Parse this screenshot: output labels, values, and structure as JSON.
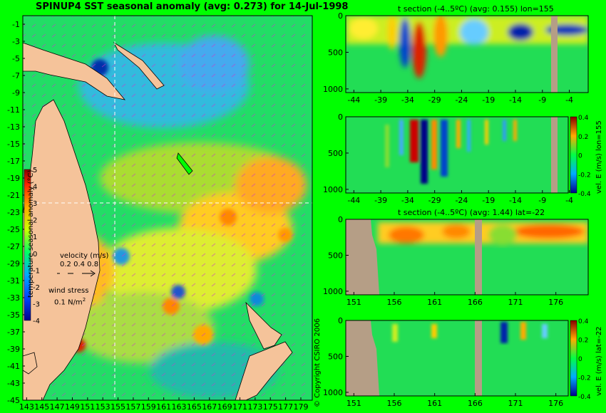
{
  "map": {
    "title": "SPINUP4 SST seasonal anomaly (avg: 0.273) for 14-Jul-1998",
    "colorbar_label": "temperature seasonal anomaly (°C)",
    "velocity_legend": {
      "title": "velocity (m/s)",
      "scale": "0.2 0.4 0.8"
    },
    "wind_legend": {
      "title": "wind stress",
      "scale": "0.1 N/m",
      "sup": "2"
    },
    "copyright": "© Copyright CSIRO 2006"
  },
  "colors": {
    "background": "#00ff00",
    "land": "#f5c39a",
    "mask": "#b59e86"
  },
  "chart_data": [
    {
      "type": "heatmap",
      "name": "sst_map",
      "title": "SPINUP4 SST seasonal anomaly (avg: 0.273) for 14-Jul-1998",
      "ylabel": "temperature seasonal anomaly (°C)",
      "xlim": [
        142.5,
        180.5
      ],
      "ylim": [
        -45,
        0
      ],
      "xticks": [
        "143",
        "145",
        "147",
        "149",
        "151",
        "153",
        "155",
        "157",
        "159",
        "161",
        "163",
        "165",
        "167",
        "169",
        "171",
        "173",
        "175",
        "177",
        "179"
      ],
      "yticks": [
        "-1",
        "-3",
        "-5",
        "-7",
        "-9",
        "-11",
        "-13",
        "-15",
        "-17",
        "-19",
        "-21",
        "-23",
        "-25",
        "-27",
        "-29",
        "-31",
        "-33",
        "-35",
        "-37",
        "-39",
        "-41",
        "-43",
        "-45"
      ],
      "colorbar": {
        "min": -4,
        "max": 5,
        "ticks": [
          "5",
          "4",
          "3",
          "2",
          "1",
          "0",
          "-1",
          "-2",
          "-3",
          "-4"
        ]
      },
      "crosshair": {
        "lon": 155,
        "lat": -22
      },
      "grid": false
    },
    {
      "type": "heatmap",
      "name": "t_section_lon",
      "title": "t section (-4..5ºC) (avg: 0.155) lon=155",
      "xlim": [
        -45.5,
        -0.5
      ],
      "ylim": [
        0,
        1050
      ],
      "xticks": [
        "-44",
        "-39",
        "-34",
        "-29",
        "-24",
        "-19",
        "-14",
        "-9",
        "-4"
      ],
      "yticks": [
        "0",
        "500",
        "1000"
      ]
    },
    {
      "type": "heatmap",
      "name": "vel_section_lon",
      "colorbar_label": "vel. E (m/s) lon=155",
      "xlim": [
        -45.5,
        -0.5
      ],
      "ylim": [
        0,
        1050
      ],
      "xticks": [
        "-44",
        "-39",
        "-34",
        "-29",
        "-24",
        "-19",
        "-14",
        "-9",
        "-4"
      ],
      "yticks": [
        "0",
        "500",
        "1000"
      ],
      "colorbar": {
        "min": -0.4,
        "max": 0.4,
        "ticks": [
          "0.4",
          "0.2",
          "0",
          "-0.2",
          "-0.4"
        ]
      }
    },
    {
      "type": "heatmap",
      "name": "t_section_lat",
      "title": "t section (-4..5ºC) (avg: 1.44) lat=-22",
      "xlim": [
        150,
        180
      ],
      "ylim": [
        0,
        1050
      ],
      "xticks": [
        "151",
        "156",
        "161",
        "166",
        "171",
        "176"
      ],
      "yticks": [
        "0",
        "500",
        "1000"
      ]
    },
    {
      "type": "heatmap",
      "name": "vel_section_lat",
      "colorbar_label": "vel. E (m/s) lat=-22",
      "xlim": [
        150,
        180
      ],
      "ylim": [
        0,
        1050
      ],
      "xticks": [
        "151",
        "156",
        "161",
        "166",
        "171",
        "176"
      ],
      "yticks": [
        "0",
        "500",
        "1000"
      ],
      "colorbar": {
        "min": -0.4,
        "max": 0.4,
        "ticks": [
          "0.4",
          "0.2",
          "0",
          "-0.2",
          "-0.4"
        ]
      }
    }
  ]
}
